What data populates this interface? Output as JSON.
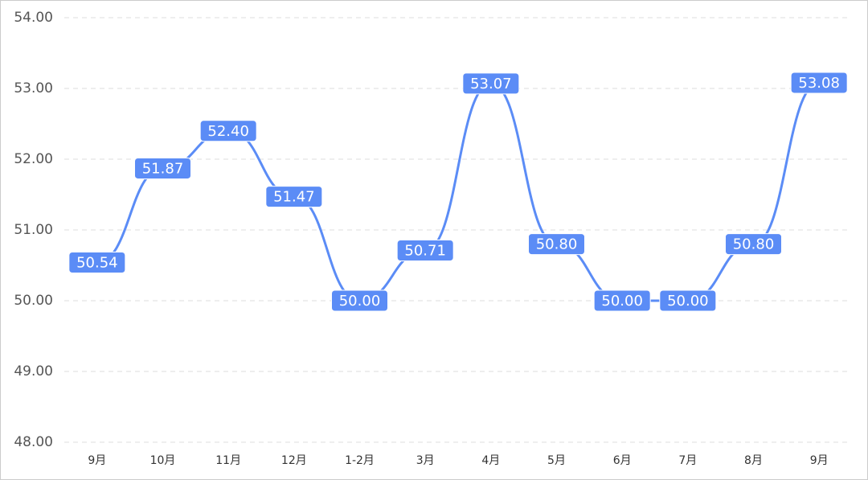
{
  "chart_data": {
    "type": "line",
    "categories": [
      "9月",
      "10月",
      "11月",
      "12月",
      "1-2月",
      "3月",
      "4月",
      "5月",
      "6月",
      "7月",
      "8月",
      "9月"
    ],
    "series": [
      {
        "color": "#5b8cf6",
        "values": [
          50.54,
          51.87,
          52.4,
          51.47,
          50,
          50.71,
          53.07,
          50.8,
          50,
          50,
          50.8,
          53.08
        ],
        "value_labels": [
          "50.54",
          "51.87",
          "52.40",
          "51.47",
          "50.00",
          "50.71",
          "53.07",
          "50.80",
          "50.00",
          "50.00",
          "50.80",
          "53.08"
        ]
      }
    ],
    "ylim": [
      48,
      54
    ],
    "yticks": [
      {
        "value": 48,
        "label": "48.00"
      },
      {
        "value": 49,
        "label": "49.00"
      },
      {
        "value": 50,
        "label": "50.00"
      },
      {
        "value": 51,
        "label": "51.00"
      },
      {
        "value": 52,
        "label": "52.00"
      },
      {
        "value": 53,
        "label": "53.00"
      },
      {
        "value": 54,
        "label": "54.00"
      }
    ],
    "grid": true,
    "smooth": true
  }
}
